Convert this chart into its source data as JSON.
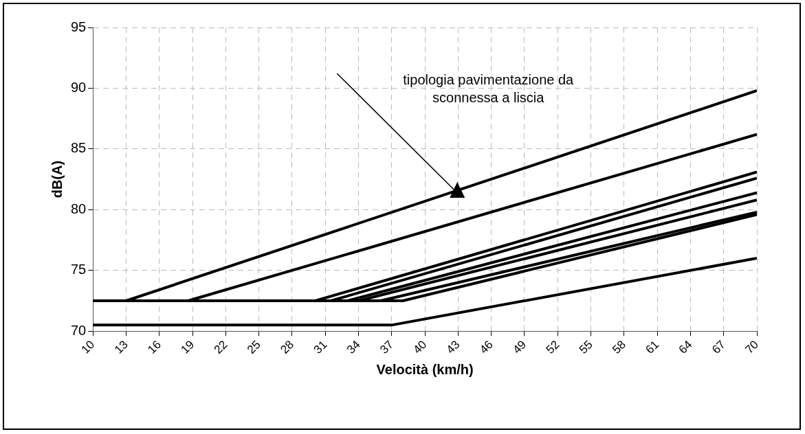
{
  "chart_data": {
    "type": "line",
    "xlabel": "Velocità (km/h)",
    "ylabel": "dB(A)",
    "xlim": [
      10,
      70
    ],
    "xticks": [
      10,
      13,
      16,
      19,
      22,
      25,
      28,
      31,
      34,
      37,
      40,
      43,
      46,
      49,
      52,
      55,
      58,
      61,
      64,
      67,
      70
    ],
    "ylim": [
      70,
      95
    ],
    "yticks": [
      70,
      75,
      80,
      85,
      90,
      95
    ],
    "grid": true,
    "legend": false,
    "marker": "none",
    "line_style": "solid",
    "annotations": [
      "tipologia pavimentazione da\nsconnessa a liscia"
    ],
    "series": [
      {
        "color": "#000000",
        "x": [
          10,
          13,
          70
        ],
        "values": [
          72.5,
          72.5,
          89.8
        ]
      },
      {
        "color": "#000000",
        "x": [
          10,
          18.6,
          70
        ],
        "values": [
          72.5,
          72.5,
          86.2
        ]
      },
      {
        "color": "#000000",
        "x": [
          10,
          30.1,
          70
        ],
        "values": [
          72.5,
          72.5,
          83.1
        ]
      },
      {
        "color": "#000000",
        "x": [
          10,
          31.5,
          70
        ],
        "values": [
          72.5,
          72.5,
          82.6
        ]
      },
      {
        "color": "#000000",
        "x": [
          10,
          33,
          70
        ],
        "values": [
          72.5,
          72.5,
          81.4
        ]
      },
      {
        "color": "#000000",
        "x": [
          10,
          34,
          70
        ],
        "values": [
          72.5,
          72.5,
          80.8
        ]
      },
      {
        "color": "#000000",
        "x": [
          10,
          36,
          70
        ],
        "values": [
          72.5,
          72.5,
          79.8
        ]
      },
      {
        "color": "#000000",
        "x": [
          10,
          38,
          70
        ],
        "values": [
          72.5,
          72.5,
          79.6
        ]
      },
      {
        "color": "#000000",
        "x": [
          10,
          37,
          70
        ],
        "values": [
          70.5,
          70.5,
          76
        ]
      }
    ]
  }
}
